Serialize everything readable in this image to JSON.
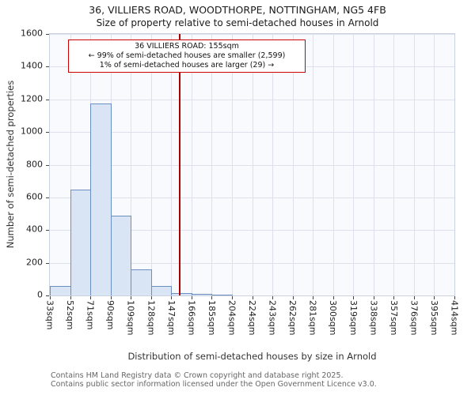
{
  "header": {
    "title": "36, VILLIERS ROAD, WOODTHORPE, NOTTINGHAM, NG5 4FB",
    "subtitle": "Size of property relative to semi-detached houses in Arnold"
  },
  "chart_data": {
    "type": "bar",
    "title": "36, VILLIERS ROAD, WOODTHORPE, NOTTINGHAM, NG5 4FB",
    "subtitle": "Size of property relative to semi-detached houses in Arnold",
    "xlabel": "Distribution of semi-detached houses by size in Arnold",
    "ylabel": "Number of semi-detached properties",
    "ylim": [
      0,
      1600
    ],
    "ytick_step": 200,
    "x_range": [
      33,
      414
    ],
    "x_tick_labels": [
      "33sqm",
      "52sqm",
      "71sqm",
      "90sqm",
      "109sqm",
      "128sqm",
      "147sqm",
      "166sqm",
      "185sqm",
      "204sqm",
      "224sqm",
      "243sqm",
      "262sqm",
      "281sqm",
      "300sqm",
      "319sqm",
      "338sqm",
      "357sqm",
      "376sqm",
      "395sqm",
      "414sqm"
    ],
    "values": [
      60,
      650,
      1175,
      490,
      160,
      60,
      15,
      10,
      5,
      0,
      0,
      0,
      0,
      0,
      0,
      0,
      0,
      0,
      0,
      0
    ],
    "grid": true,
    "bar_fill": "#d9e5f5",
    "bar_border": "#6a8fc0",
    "marker": {
      "value": 155,
      "color": "#aa0000"
    },
    "annotation": {
      "line1": "36 VILLIERS ROAD: 155sqm",
      "line2": "← 99% of semi-detached houses are smaller (2,599)",
      "line3": "1% of semi-detached houses are larger (29) →"
    }
  },
  "footer": {
    "line1": "Contains HM Land Registry data © Crown copyright and database right 2025.",
    "line2": "Contains public sector information licensed under the Open Government Licence v3.0."
  }
}
